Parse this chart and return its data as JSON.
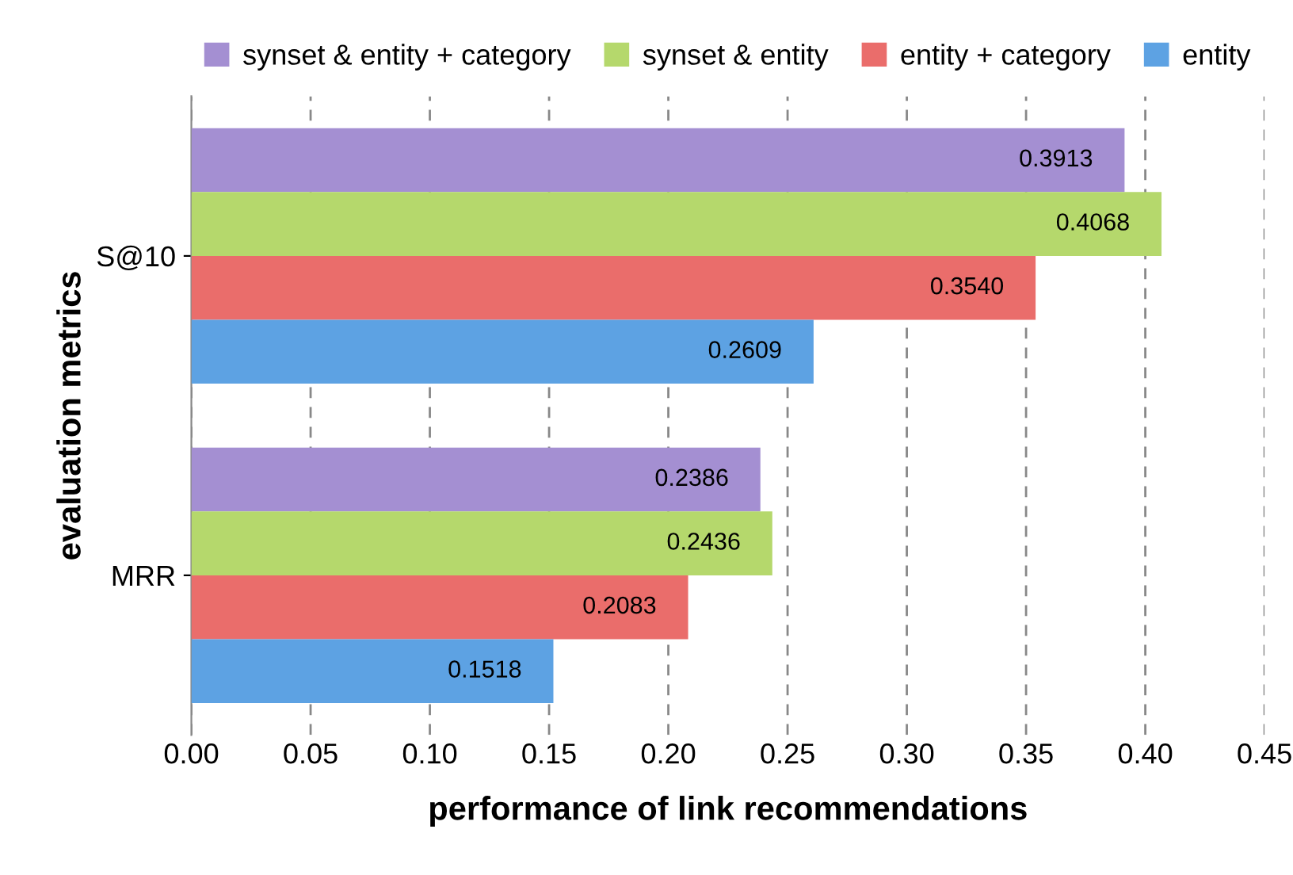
{
  "chart_data": {
    "type": "bar",
    "orientation": "horizontal",
    "xlabel": "performance of link recommendations",
    "ylabel": "evaluation metrics",
    "categories": [
      "S@10",
      "MRR"
    ],
    "series": [
      {
        "name": "synset & entity + category",
        "color": "#a48fd2",
        "values": [
          0.3913,
          0.2386
        ],
        "value_labels": [
          "0.3913",
          "0.2386"
        ]
      },
      {
        "name": "synset & entity",
        "color": "#b5d86c",
        "values": [
          0.4068,
          0.2436
        ],
        "value_labels": [
          "0.4068",
          "0.2436"
        ]
      },
      {
        "name": "entity + category",
        "color": "#ea6d6b",
        "values": [
          0.354,
          0.2083
        ],
        "value_labels": [
          "0.3540",
          "0.2083"
        ]
      },
      {
        "name": "entity",
        "color": "#5da2e3",
        "values": [
          0.2609,
          0.1518
        ],
        "value_labels": [
          "0.2609",
          "0.1518"
        ]
      }
    ],
    "xlim": [
      0,
      0.45
    ],
    "xticks": [
      {
        "value": 0,
        "label": "0.00"
      },
      {
        "value": 0.05,
        "label": "0.05"
      },
      {
        "value": 0.1,
        "label": "0.10"
      },
      {
        "value": 0.15,
        "label": "0.15"
      },
      {
        "value": 0.2,
        "label": "0.20"
      },
      {
        "value": 0.25,
        "label": "0.25"
      },
      {
        "value": 0.3,
        "label": "0.30"
      },
      {
        "value": 0.35,
        "label": "0.35"
      },
      {
        "value": 0.4,
        "label": "0.40"
      },
      {
        "value": 0.45,
        "label": "0.45"
      }
    ],
    "grid": "x",
    "legend": "top"
  }
}
